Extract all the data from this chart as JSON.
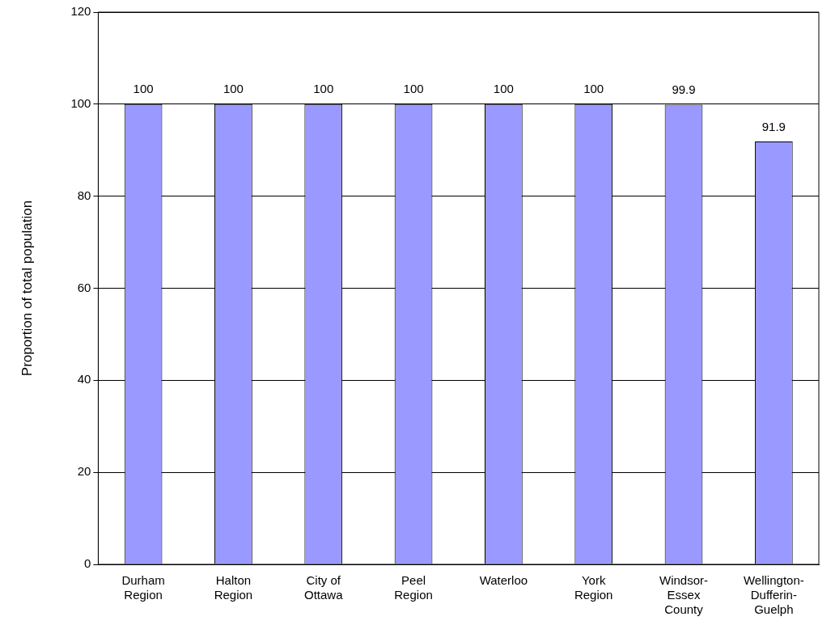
{
  "chart_data": {
    "type": "bar",
    "ylabel": "Proportion of total population",
    "categories": [
      "Durham Region",
      "Halton Region",
      "City of Ottawa",
      "Peel Region",
      "Waterloo",
      "York Region",
      "Windsor-Essex County",
      "Wellington-Dufferin-Guelph"
    ],
    "values": [
      100,
      100,
      100,
      100,
      100,
      100,
      99.9,
      91.9
    ],
    "color": "#9999ff",
    "ylim": [
      0,
      120
    ],
    "yticks": [
      0,
      20,
      40,
      60,
      80,
      100,
      120
    ],
    "grid": "y",
    "data_labels": true,
    "legend": false
  }
}
